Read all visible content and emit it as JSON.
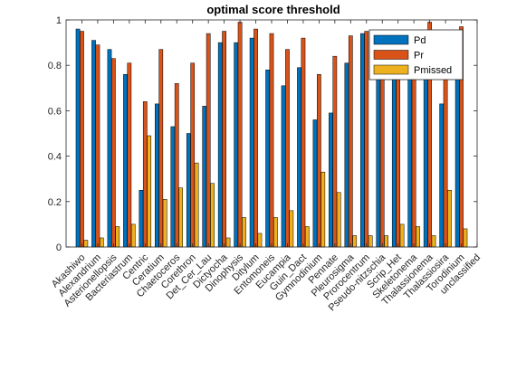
{
  "chart_data": {
    "type": "bar",
    "title": "optimal score threshold",
    "xlabel": "",
    "ylabel": "",
    "ylim": [
      0,
      1
    ],
    "yticks": [
      0,
      0.2,
      0.4,
      0.6,
      0.8,
      1
    ],
    "ytick_labels": [
      "0",
      "0.2",
      "0.4",
      "0.6",
      "0.8",
      "1"
    ],
    "grid": false,
    "legend_position": "top-right",
    "categories": [
      "Akashiwo",
      "Alexandrium",
      "Asterionellopsis",
      "Bacteriastrum",
      "Centric",
      "Ceratium",
      "Chaetoceros",
      "Corethron",
      "Det_Cer_Lau",
      "Dictyocha",
      "Dinophysis",
      "Ditylum",
      "Entomoneis",
      "Eucampia",
      "Guin_Dact",
      "Gymnodinium",
      "Pennate",
      "Pleurosigma",
      "Prorocentrum",
      "Pseudo-nitzschia",
      "Scrip_Het",
      "Skeletonema",
      "Thalassionema",
      "Thalassiosira",
      "Torodinium",
      "unclassified"
    ],
    "series": [
      {
        "name": "Pd",
        "color": "#0072BD",
        "values": [
          0.96,
          0.91,
          0.87,
          0.76,
          0.25,
          0.63,
          0.53,
          0.5,
          0.62,
          0.9,
          0.9,
          0.92,
          0.78,
          0.71,
          0.79,
          0.56,
          0.59,
          0.81,
          0.94,
          0.9,
          0.85,
          0.88,
          0.92,
          0.63,
          0.93,
          0
        ]
      },
      {
        "name": "Pr",
        "color": "#D95319",
        "values": [
          0.95,
          0.89,
          0.83,
          0.81,
          0.64,
          0.87,
          0.72,
          0.81,
          0.94,
          0.95,
          0.99,
          0.96,
          0.94,
          0.87,
          0.92,
          0.76,
          0.84,
          0.93,
          0.95,
          0.83,
          0.9,
          0.92,
          0.99,
          0.89,
          0.97,
          0
        ]
      },
      {
        "name": "Pmissed",
        "color": "#EDB120",
        "values": [
          0.03,
          0.04,
          0.09,
          0.1,
          0.49,
          0.21,
          0.26,
          0.37,
          0.28,
          0.04,
          0.13,
          0.06,
          0.13,
          0.16,
          0.09,
          0.33,
          0.24,
          0.05,
          0.05,
          0.05,
          0.1,
          0.09,
          0.05,
          0.25,
          0.08,
          0
        ]
      }
    ]
  }
}
